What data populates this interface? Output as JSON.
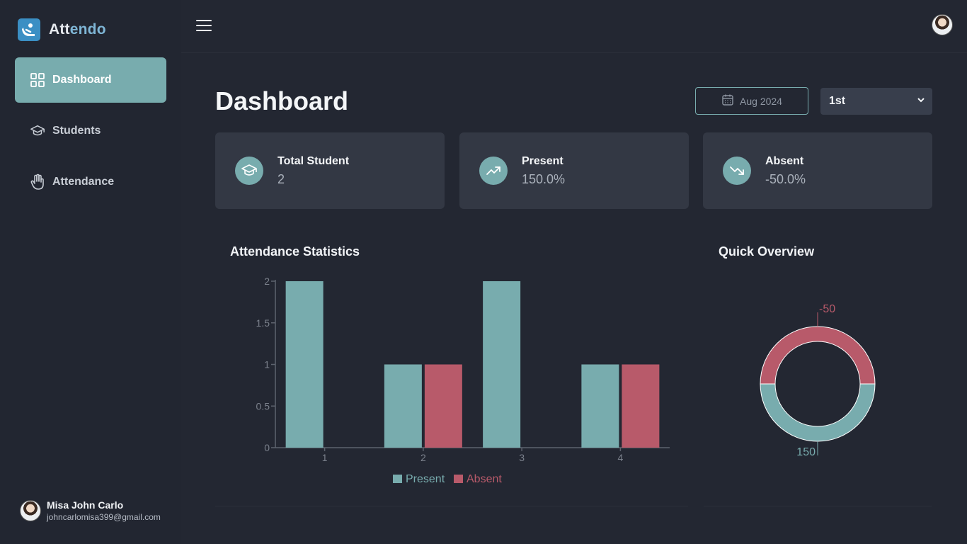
{
  "app": {
    "brand_prefix": "Att",
    "brand_highlight": "endo",
    "brand_color": "#3b8fc4",
    "accent": "#78acae",
    "danger": "#b85a6a"
  },
  "sidebar": {
    "items": [
      {
        "label": "Dashboard",
        "icon": "grid-icon",
        "active": true
      },
      {
        "label": "Students",
        "icon": "graduation-cap-icon",
        "active": false
      },
      {
        "label": "Attendance",
        "icon": "hand-icon",
        "active": false
      }
    ],
    "user": {
      "name": "Misa John Carlo",
      "email": "johncarlomisa399@gmail.com"
    }
  },
  "header": {
    "menu_icon": "hamburger-menu-icon",
    "avatar": "user-avatar"
  },
  "main": {
    "title": "Dashboard",
    "date_filter": {
      "label": "Aug 2024",
      "icon": "calendar-icon"
    },
    "period_select": {
      "value": "1st",
      "options": [
        "1st"
      ]
    },
    "stats": [
      {
        "label": "Total Student",
        "value": "2",
        "icon": "graduation-cap-icon"
      },
      {
        "label": "Present",
        "value": "150.0%",
        "icon": "trending-up-icon"
      },
      {
        "label": "Absent",
        "value": "-50.0%",
        "icon": "trending-down-icon"
      }
    ],
    "attendance_panel": {
      "title": "Attendance Statistics"
    },
    "overview_panel": {
      "title": "Quick Overview"
    }
  },
  "chart_data": [
    {
      "type": "bar",
      "title": "Attendance Statistics",
      "categories": [
        "1",
        "2",
        "3",
        "4"
      ],
      "series": [
        {
          "name": "Present",
          "values": [
            2,
            1,
            2,
            1
          ],
          "color": "#78acae"
        },
        {
          "name": "Absent",
          "values": [
            0,
            1,
            0,
            1
          ],
          "color": "#b85a6a"
        }
      ],
      "ylim": [
        0,
        2
      ],
      "yticks": [
        "0",
        "0.5",
        "1",
        "1.5",
        "2"
      ],
      "legend": "bottom"
    },
    {
      "type": "pie",
      "title": "Quick Overview",
      "donut": true,
      "slices": [
        {
          "name": "Present",
          "value": 150,
          "label": "150",
          "color": "#78acae"
        },
        {
          "name": "Absent",
          "value": -50,
          "label": "-50",
          "color": "#b85a6a"
        }
      ]
    }
  ]
}
